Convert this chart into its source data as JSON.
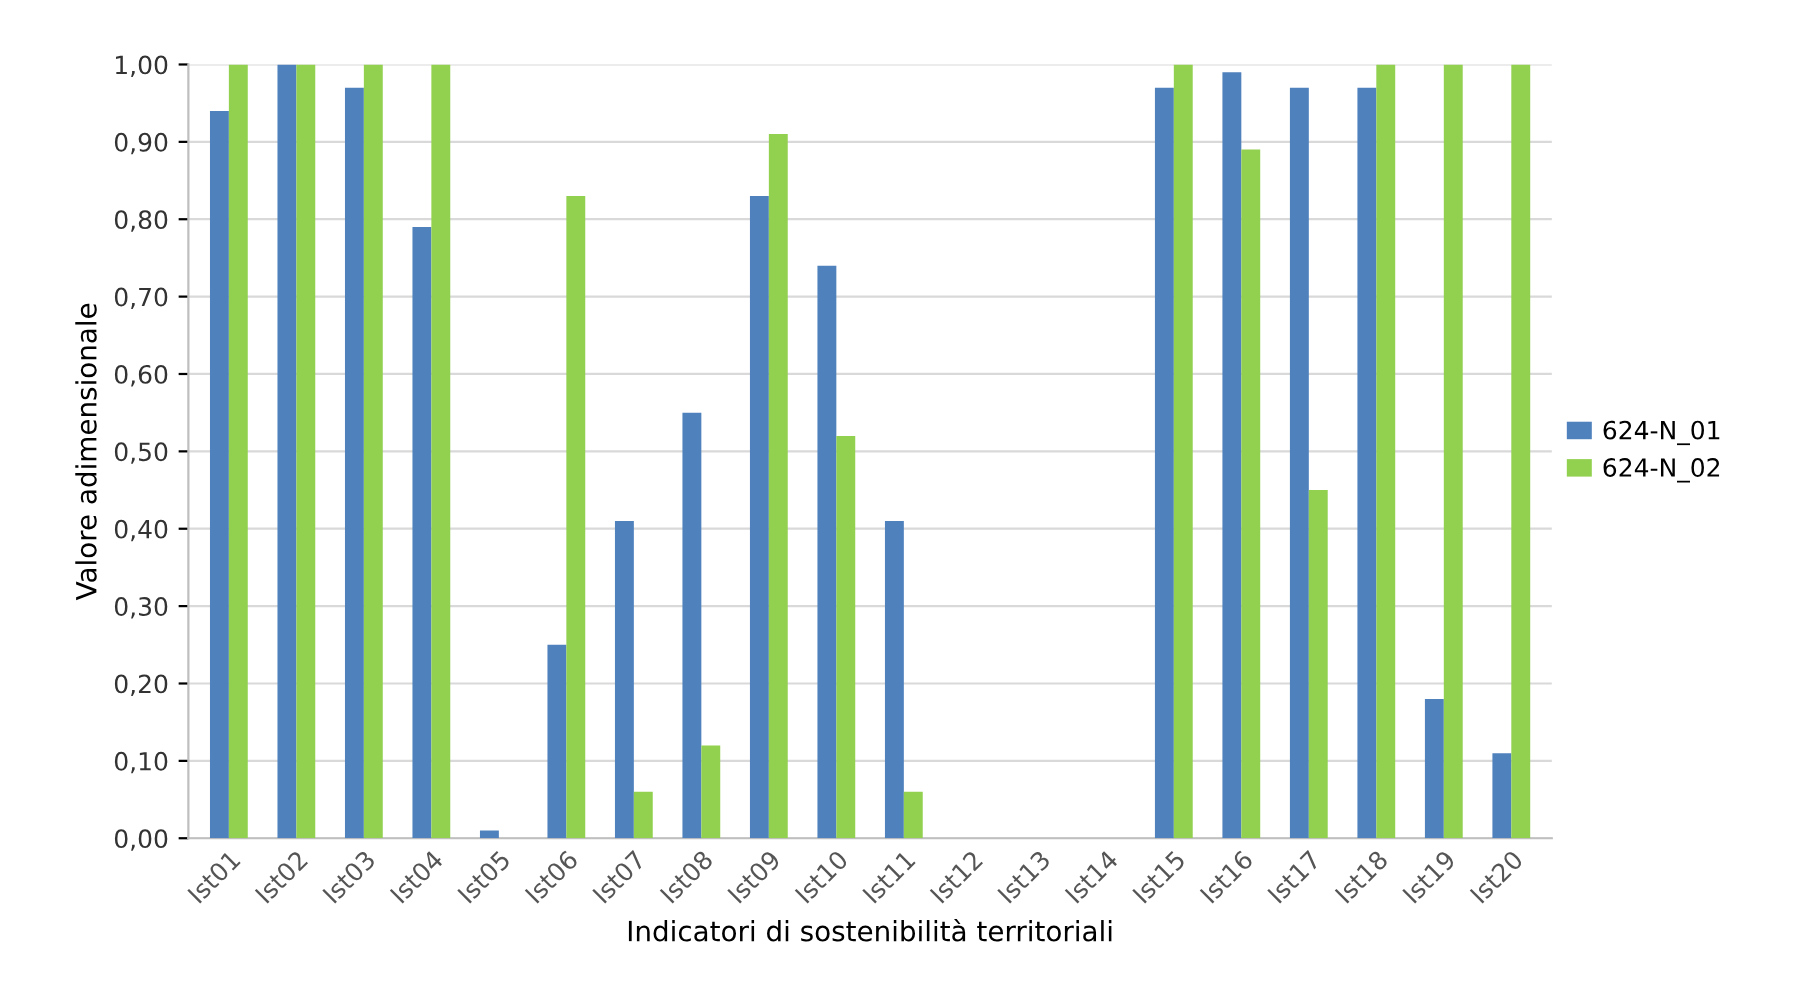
{
  "chart_data": {
    "type": "bar",
    "xlabel": "Indicatori di sostenibilità territoriali",
    "ylabel": "Valore adimensionale",
    "categories": [
      "Ist01",
      "Ist02",
      "Ist03",
      "Ist04",
      "Ist05",
      "Ist06",
      "Ist07",
      "Ist08",
      "Ist09",
      "Ist10",
      "Ist11",
      "Ist12",
      "Ist13",
      "Ist14",
      "Ist15",
      "Ist16",
      "Ist17",
      "Ist18",
      "Ist19",
      "Ist20"
    ],
    "series": [
      {
        "name": "624-N_01",
        "color": "#4f81bd",
        "values": [
          0.94,
          1.0,
          0.97,
          0.79,
          0.01,
          0.25,
          0.41,
          0.55,
          0.83,
          0.74,
          0.41,
          0,
          0,
          0,
          0.97,
          0.99,
          0.97,
          0.97,
          0.18,
          0.11
        ]
      },
      {
        "name": "624-N_02",
        "color": "#92d050",
        "values": [
          1.0,
          1.0,
          1.0,
          1.0,
          0,
          0.83,
          0.06,
          0.12,
          0.91,
          0.52,
          0.06,
          0,
          0,
          0,
          1.0,
          0.89,
          0.45,
          1.0,
          1.0,
          1.0
        ]
      }
    ],
    "ylim": [
      0,
      1.0
    ],
    "yticks": [
      {
        "value": 0,
        "label": "0,00"
      },
      {
        "value": 0.1,
        "label": "0,10"
      },
      {
        "value": 0.2,
        "label": "0,20"
      },
      {
        "value": 0.3,
        "label": "0,30"
      },
      {
        "value": 0.4,
        "label": "0,40"
      },
      {
        "value": 0.5,
        "label": "0,50"
      },
      {
        "value": 0.6,
        "label": "0,60"
      },
      {
        "value": 0.7,
        "label": "0,70"
      },
      {
        "value": 0.8,
        "label": "0,80"
      },
      {
        "value": 0.9,
        "label": "0,90"
      },
      {
        "value": 1.0,
        "label": "1,00"
      }
    ],
    "grid": "y",
    "legend": "right"
  }
}
